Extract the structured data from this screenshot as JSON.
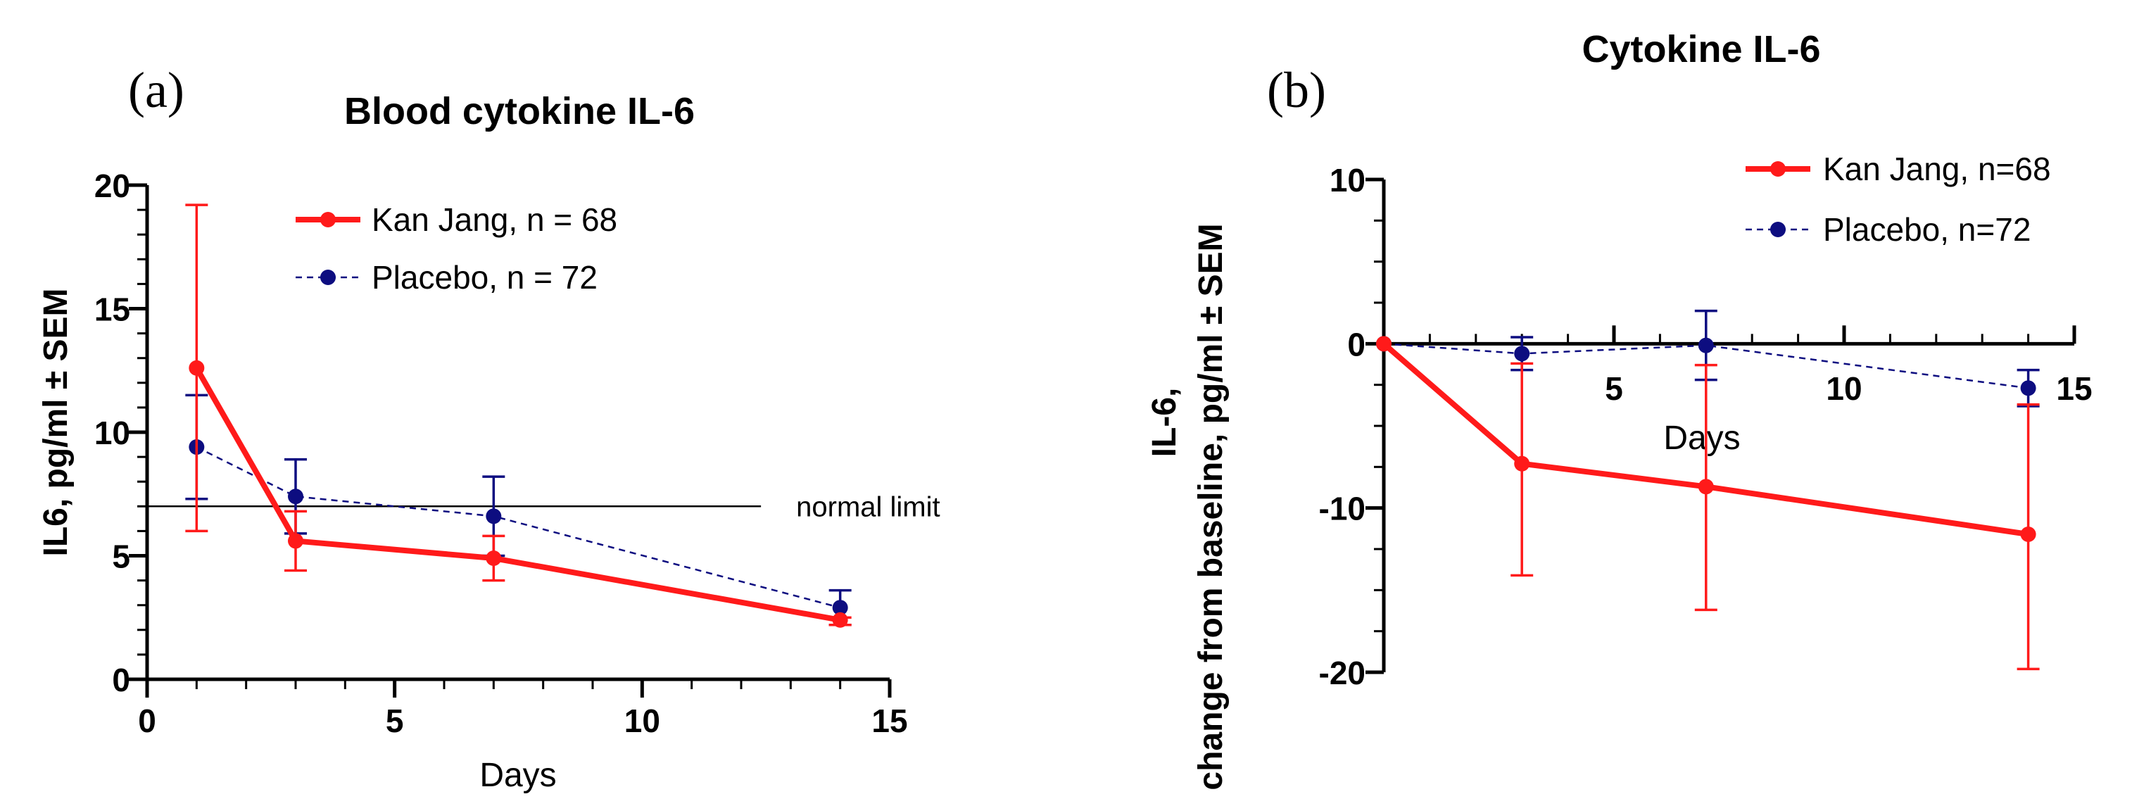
{
  "chart_data": [
    {
      "type": "line",
      "panel_label": "(a)",
      "title": "Blood cytokine IL-6",
      "xlabel": "Days",
      "ylabel": "IL6, pg/ml ± SEM",
      "xlim": [
        0,
        15
      ],
      "ylim": [
        0,
        20
      ],
      "xticks": [
        0,
        5,
        10,
        15
      ],
      "yticks": [
        0,
        5,
        10,
        15,
        20
      ],
      "xtick_labels": [
        "0",
        "5",
        "10",
        "15"
      ],
      "ytick_labels": [
        "0",
        "5",
        "10",
        "15",
        "20"
      ],
      "reference_line": {
        "y": 7,
        "x_end": 12.4,
        "label": "normal limit"
      },
      "legend_position": "top-right",
      "series": [
        {
          "name": "Kan Jang, n = 68",
          "color": "#ff1a1a",
          "style": "solid",
          "x": [
            1,
            3,
            7,
            14
          ],
          "y": [
            12.6,
            5.6,
            4.9,
            2.4
          ],
          "err_upper": [
            19.2,
            6.8,
            5.8,
            2.5
          ],
          "err_lower": [
            6.0,
            4.4,
            4.0,
            2.2
          ]
        },
        {
          "name": "Placebo, n = 72",
          "color": "#0d0d80",
          "style": "dashed",
          "x": [
            1,
            3,
            7,
            14
          ],
          "y": [
            9.4,
            7.4,
            6.6,
            2.9
          ],
          "err_upper": [
            11.5,
            8.9,
            8.2,
            3.6
          ],
          "err_lower": [
            7.3,
            5.9,
            5.0,
            2.2
          ]
        }
      ]
    },
    {
      "type": "line",
      "panel_label": "(b)",
      "title": "Cytokine IL-6",
      "xlabel": "Days",
      "ylabel_line1": "IL-6,",
      "ylabel_line2": "change from baseline, pg/ml ± SEM",
      "xlim": [
        0,
        15
      ],
      "ylim": [
        -20,
        10
      ],
      "xticks": [
        5,
        10,
        15
      ],
      "yticks": [
        -20,
        -10,
        0,
        10
      ],
      "xtick_labels": [
        "5",
        "10",
        "15"
      ],
      "ytick_labels": [
        "-20",
        "-10",
        "0",
        "10"
      ],
      "legend_position": "top-right",
      "series": [
        {
          "name": "Kan Jang, n=68",
          "color": "#ff1a1a",
          "style": "solid",
          "x": [
            0,
            3,
            7,
            14
          ],
          "y": [
            0,
            -7.3,
            -8.7,
            -11.6
          ],
          "err_upper": [
            0,
            -1.2,
            -1.3,
            -3.7
          ],
          "err_lower": [
            0,
            -14.1,
            -16.2,
            -19.8
          ]
        },
        {
          "name": "Placebo, n=72",
          "color": "#0d0d80",
          "style": "dashed",
          "x": [
            0,
            3,
            7,
            14
          ],
          "y": [
            0,
            -0.6,
            -0.1,
            -2.7
          ],
          "err_upper": [
            0,
            0.4,
            2.0,
            -1.6
          ],
          "err_lower": [
            0,
            -1.6,
            -2.2,
            -3.8
          ]
        }
      ]
    }
  ]
}
